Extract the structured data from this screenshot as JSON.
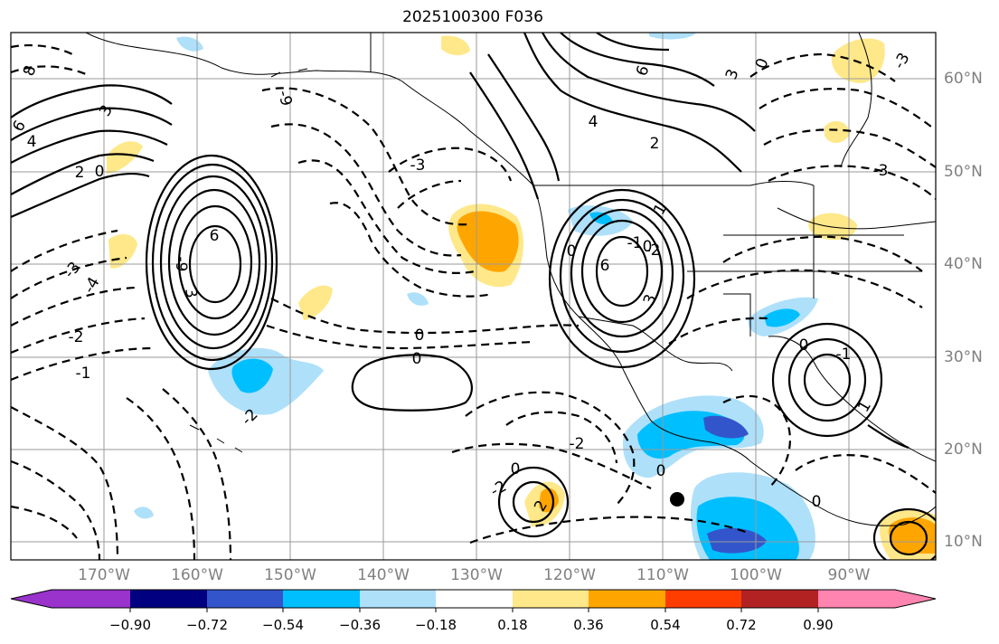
{
  "title": "2025100300 F036",
  "lat_labels": [
    "60°N",
    "50°N",
    "40°N",
    "30°N",
    "20°N",
    "10°N"
  ],
  "lon_labels": [
    "170°W",
    "160°W",
    "150°W",
    "140°W",
    "130°W",
    "120°W",
    "110°W",
    "100°W",
    "90°W"
  ],
  "colorbar": {
    "tick_labels": [
      "−0.90",
      "−0.72",
      "−0.54",
      "−0.36",
      "−0.18",
      "0.18",
      "0.36",
      "0.54",
      "0.72",
      "0.90"
    ],
    "colors": [
      "#9933cc",
      "#000080",
      "#3355cc",
      "#00bfff",
      "#aee0fa",
      "#ffffff",
      "#ffe88a",
      "#ffa500",
      "#ff3d00",
      "#b22222",
      "#ff85b0"
    ]
  },
  "contour_labels": [
    "8",
    "6",
    "3",
    "4",
    "2",
    "0",
    "-9",
    "-4",
    "-3",
    "-2",
    "-1",
    "6",
    "3",
    "-9",
    "-3",
    "-2",
    "0",
    "0",
    "0",
    "-1",
    "0",
    "-2",
    "0",
    "-2",
    "2",
    "-2",
    "4",
    "6",
    "3",
    "0",
    "-3",
    "-3",
    "6",
    "2",
    "3",
    "0",
    "1",
    "-1",
    "0",
    "0",
    "1"
  ],
  "marker": "black-dot"
}
